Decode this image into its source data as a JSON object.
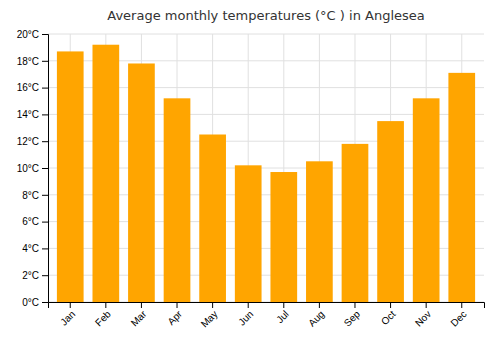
{
  "chart_data": {
    "type": "bar",
    "title": "Average monthly temperatures (°C ) in Anglesea",
    "categories": [
      "Jan",
      "Feb",
      "Mar",
      "Apr",
      "May",
      "Jun",
      "Jul",
      "Aug",
      "Sep",
      "Oct",
      "Nov",
      "Dec"
    ],
    "values": [
      18.7,
      19.2,
      17.8,
      15.2,
      12.5,
      10.2,
      9.7,
      10.5,
      11.8,
      13.5,
      15.2,
      17.1
    ],
    "color": "#FFA500",
    "ylim": [
      0,
      20
    ],
    "yticks": [
      {
        "value": 0,
        "label": "0°C"
      },
      {
        "value": 2,
        "label": "2°C"
      },
      {
        "value": 4,
        "label": "4°C"
      },
      {
        "value": 6,
        "label": "6°C"
      },
      {
        "value": 8,
        "label": "8°C"
      },
      {
        "value": 10,
        "label": "10°C"
      },
      {
        "value": 12,
        "label": "12°C"
      },
      {
        "value": 14,
        "label": "14°C"
      },
      {
        "value": 16,
        "label": "16°C"
      },
      {
        "value": 18,
        "label": "18°C"
      },
      {
        "value": 20,
        "label": "20°C"
      }
    ],
    "grid": true
  }
}
